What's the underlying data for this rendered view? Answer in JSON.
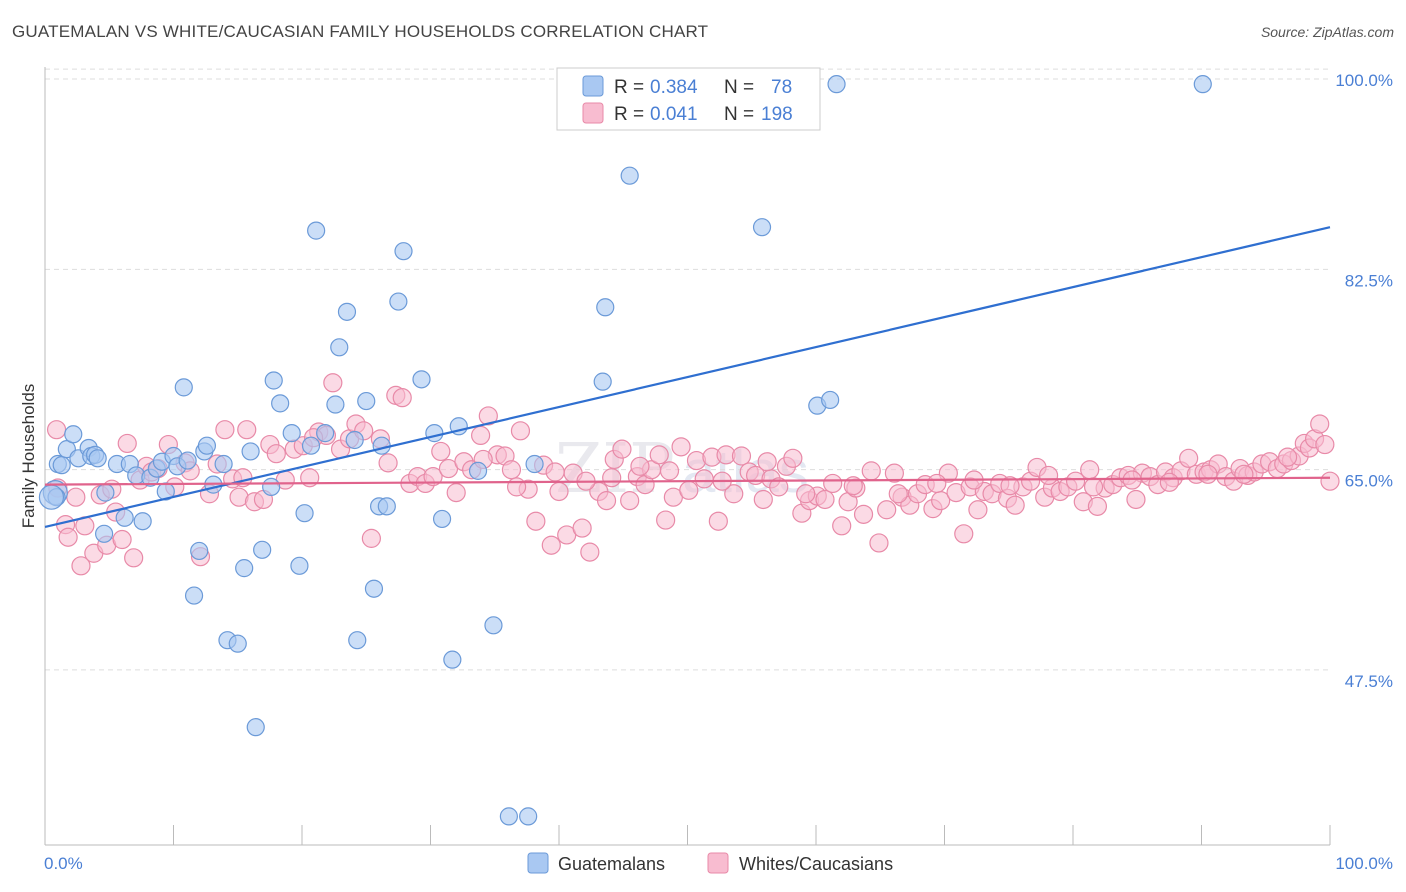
{
  "header": {
    "title": "GUATEMALAN VS WHITE/CAUCASIAN FAMILY HOUSEHOLDS CORRELATION CHART",
    "source": "Source: ZipAtlas.com"
  },
  "watermark": {
    "zip": "ZIP",
    "atlas": "atlas"
  },
  "colors": {
    "blue_fill": "#a9c8f2",
    "blue_stroke": "#6b9ad8",
    "blue_line": "#2f6fd0",
    "pink_fill": "#f8bcd0",
    "pink_stroke": "#e88aa8",
    "pink_line": "#e0638c",
    "tick_text": "#4a7fd4",
    "grid": "#dddddd"
  },
  "legend": {
    "r_label": "R =",
    "n_label": "N =",
    "series": [
      {
        "r": "0.384",
        "n": "78"
      },
      {
        "r": "0.041",
        "n": "198"
      }
    ]
  },
  "chart_data": {
    "type": "scatter",
    "title": "GUATEMALAN VS WHITE/CAUCASIAN FAMILY HOUSEHOLDS CORRELATION CHART",
    "xlabel": "",
    "ylabel": "Family Households",
    "xlim": [
      0,
      100
    ],
    "ylim": [
      33.5,
      101.5
    ],
    "x_tick_labels": [
      "0.0%",
      "100.0%"
    ],
    "y_ticks": [
      47.5,
      65.0,
      82.5,
      100.0
    ],
    "y_tick_labels": [
      "47.5%",
      "65.0%",
      "82.5%",
      "100.0%"
    ],
    "grid": true,
    "legend_position": "top-center",
    "series": [
      {
        "name": "Guatemalans",
        "color": "#a9c8f2",
        "trend": {
          "x": [
            0,
            100
          ],
          "y": [
            61.3,
            87.5
          ]
        },
        "points": [
          [
            0.8,
            64.3
          ],
          [
            0.9,
            63.9
          ],
          [
            1.0,
            66.8
          ],
          [
            1.3,
            66.7
          ],
          [
            1.7,
            68.1
          ],
          [
            2.2,
            69.4
          ],
          [
            2.6,
            67.3
          ],
          [
            3.4,
            68.2
          ],
          [
            3.6,
            67.5
          ],
          [
            3.9,
            67.6
          ],
          [
            4.1,
            67.3
          ],
          [
            4.6,
            60.7
          ],
          [
            4.7,
            64.3
          ],
          [
            5.6,
            66.8
          ],
          [
            6.2,
            62.1
          ],
          [
            6.6,
            66.8
          ],
          [
            7.1,
            65.8
          ],
          [
            7.6,
            61.8
          ],
          [
            8.2,
            65.6
          ],
          [
            8.7,
            66.4
          ],
          [
            9.1,
            67.0
          ],
          [
            9.4,
            64.4
          ],
          [
            10.0,
            67.5
          ],
          [
            10.3,
            66.6
          ],
          [
            10.8,
            73.5
          ],
          [
            11.1,
            67.1
          ],
          [
            11.6,
            55.3
          ],
          [
            12.0,
            59.2
          ],
          [
            12.4,
            67.9
          ],
          [
            12.6,
            68.4
          ],
          [
            13.1,
            65.0
          ],
          [
            13.9,
            66.8
          ],
          [
            14.2,
            51.4
          ],
          [
            15.0,
            51.1
          ],
          [
            15.5,
            57.7
          ],
          [
            16.0,
            67.9
          ],
          [
            16.4,
            43.8
          ],
          [
            16.9,
            59.3
          ],
          [
            17.6,
            64.8
          ],
          [
            17.8,
            74.1
          ],
          [
            18.3,
            72.1
          ],
          [
            19.2,
            69.5
          ],
          [
            19.8,
            57.9
          ],
          [
            20.2,
            62.5
          ],
          [
            20.7,
            68.4
          ],
          [
            21.1,
            87.2
          ],
          [
            21.8,
            69.5
          ],
          [
            22.6,
            72.0
          ],
          [
            22.9,
            77.0
          ],
          [
            23.5,
            80.1
          ],
          [
            24.1,
            68.9
          ],
          [
            24.3,
            51.4
          ],
          [
            25.0,
            72.3
          ],
          [
            25.6,
            55.9
          ],
          [
            26.0,
            63.1
          ],
          [
            26.2,
            68.4
          ],
          [
            26.6,
            63.1
          ],
          [
            27.5,
            81.0
          ],
          [
            27.9,
            85.4
          ],
          [
            29.3,
            74.2
          ],
          [
            30.3,
            69.5
          ],
          [
            30.9,
            62.0
          ],
          [
            31.7,
            49.7
          ],
          [
            32.2,
            70.1
          ],
          [
            33.7,
            66.2
          ],
          [
            34.9,
            52.7
          ],
          [
            36.1,
            36.0
          ],
          [
            37.6,
            36.0
          ],
          [
            38.1,
            66.8
          ],
          [
            43.4,
            74.0
          ],
          [
            43.6,
            80.5
          ],
          [
            45.5,
            92.0
          ],
          [
            55.8,
            87.5
          ],
          [
            60.1,
            71.9
          ],
          [
            61.1,
            72.4
          ],
          [
            61.6,
            100.0
          ],
          [
            90.1,
            100.0
          ],
          [
            0.5,
            63.9
          ]
        ]
      },
      {
        "name": "Whites/Caucasians",
        "color": "#f8bcd0",
        "trend": {
          "x": [
            0,
            100
          ],
          "y": [
            65.0,
            65.6
          ]
        },
        "points": [
          [
            0.9,
            69.8
          ],
          [
            1.0,
            64.7
          ],
          [
            1.6,
            61.5
          ],
          [
            1.8,
            60.4
          ],
          [
            2.4,
            63.9
          ],
          [
            2.8,
            57.9
          ],
          [
            3.1,
            61.4
          ],
          [
            3.8,
            59.0
          ],
          [
            4.3,
            64.1
          ],
          [
            4.8,
            59.7
          ],
          [
            5.2,
            64.6
          ],
          [
            5.5,
            62.6
          ],
          [
            6.0,
            60.2
          ],
          [
            6.4,
            68.6
          ],
          [
            6.9,
            58.6
          ],
          [
            7.4,
            65.4
          ],
          [
            7.9,
            66.6
          ],
          [
            8.3,
            66.1
          ],
          [
            8.8,
            66.4
          ],
          [
            9.6,
            68.5
          ],
          [
            10.1,
            64.8
          ],
          [
            10.9,
            66.9
          ],
          [
            11.3,
            66.2
          ],
          [
            12.1,
            58.7
          ],
          [
            12.8,
            64.2
          ],
          [
            13.4,
            66.8
          ],
          [
            14.0,
            69.8
          ],
          [
            14.6,
            65.5
          ],
          [
            15.1,
            63.9
          ],
          [
            15.7,
            69.8
          ],
          [
            16.3,
            63.5
          ],
          [
            17.0,
            63.7
          ],
          [
            17.5,
            68.5
          ],
          [
            18.0,
            67.7
          ],
          [
            18.7,
            65.4
          ],
          [
            19.4,
            68.1
          ],
          [
            20.1,
            68.4
          ],
          [
            20.6,
            65.6
          ],
          [
            21.3,
            69.6
          ],
          [
            21.9,
            69.3
          ],
          [
            22.4,
            73.9
          ],
          [
            23.0,
            68.1
          ],
          [
            23.7,
            69.0
          ],
          [
            24.2,
            70.3
          ],
          [
            24.8,
            69.7
          ],
          [
            25.4,
            60.3
          ],
          [
            26.1,
            69.0
          ],
          [
            26.7,
            66.9
          ],
          [
            27.3,
            72.8
          ],
          [
            27.8,
            72.6
          ],
          [
            28.4,
            65.1
          ],
          [
            29.0,
            65.7
          ],
          [
            29.6,
            65.1
          ],
          [
            30.2,
            65.7
          ],
          [
            30.8,
            67.9
          ],
          [
            31.4,
            66.4
          ],
          [
            32.0,
            64.3
          ],
          [
            32.6,
            67.0
          ],
          [
            33.2,
            66.3
          ],
          [
            33.9,
            69.3
          ],
          [
            34.5,
            71.0
          ],
          [
            35.2,
            67.6
          ],
          [
            35.8,
            67.5
          ],
          [
            36.3,
            66.3
          ],
          [
            37.0,
            69.7
          ],
          [
            37.6,
            64.6
          ],
          [
            38.2,
            61.8
          ],
          [
            38.8,
            66.7
          ],
          [
            39.4,
            59.7
          ],
          [
            40.0,
            64.4
          ],
          [
            40.6,
            60.6
          ],
          [
            41.1,
            66.0
          ],
          [
            41.8,
            61.2
          ],
          [
            42.4,
            59.1
          ],
          [
            43.1,
            64.4
          ],
          [
            43.7,
            63.6
          ],
          [
            44.3,
            67.2
          ],
          [
            44.9,
            68.1
          ],
          [
            45.5,
            63.6
          ],
          [
            46.1,
            65.7
          ],
          [
            46.7,
            65.0
          ],
          [
            47.2,
            66.3
          ],
          [
            47.8,
            67.6
          ],
          [
            48.3,
            61.9
          ],
          [
            48.9,
            63.9
          ],
          [
            49.5,
            68.3
          ],
          [
            50.1,
            64.5
          ],
          [
            50.7,
            67.1
          ],
          [
            51.3,
            65.5
          ],
          [
            51.9,
            67.4
          ],
          [
            52.4,
            61.8
          ],
          [
            53.0,
            67.6
          ],
          [
            53.6,
            64.2
          ],
          [
            54.2,
            67.5
          ],
          [
            54.8,
            66.1
          ],
          [
            55.3,
            65.8
          ],
          [
            55.9,
            63.7
          ],
          [
            56.5,
            65.5
          ],
          [
            57.1,
            64.8
          ],
          [
            57.7,
            66.6
          ],
          [
            58.2,
            67.3
          ],
          [
            58.9,
            62.5
          ],
          [
            59.5,
            63.6
          ],
          [
            60.1,
            64.0
          ],
          [
            60.7,
            63.7
          ],
          [
            61.3,
            65.1
          ],
          [
            62.0,
            61.4
          ],
          [
            62.5,
            63.5
          ],
          [
            63.1,
            64.7
          ],
          [
            63.7,
            62.4
          ],
          [
            64.3,
            66.2
          ],
          [
            64.9,
            59.9
          ],
          [
            65.5,
            62.8
          ],
          [
            66.1,
            66.0
          ],
          [
            66.7,
            63.9
          ],
          [
            67.3,
            63.2
          ],
          [
            67.9,
            64.2
          ],
          [
            68.5,
            65.0
          ],
          [
            69.1,
            62.9
          ],
          [
            69.7,
            63.6
          ],
          [
            70.3,
            66.0
          ],
          [
            70.9,
            64.3
          ],
          [
            71.5,
            60.7
          ],
          [
            72.0,
            64.8
          ],
          [
            72.6,
            62.8
          ],
          [
            73.1,
            64.4
          ],
          [
            73.7,
            64.2
          ],
          [
            74.3,
            65.1
          ],
          [
            74.9,
            63.8
          ],
          [
            75.5,
            63.2
          ],
          [
            76.1,
            64.8
          ],
          [
            76.7,
            65.3
          ],
          [
            77.2,
            66.5
          ],
          [
            77.8,
            63.9
          ],
          [
            78.4,
            64.7
          ],
          [
            79.0,
            64.4
          ],
          [
            79.6,
            64.8
          ],
          [
            80.2,
            65.3
          ],
          [
            80.8,
            63.5
          ],
          [
            81.3,
            66.3
          ],
          [
            81.9,
            63.1
          ],
          [
            82.5,
            64.7
          ],
          [
            83.1,
            65.0
          ],
          [
            83.7,
            65.6
          ],
          [
            84.3,
            65.8
          ],
          [
            84.9,
            63.7
          ],
          [
            85.4,
            66.0
          ],
          [
            86.0,
            65.7
          ],
          [
            86.6,
            65.0
          ],
          [
            87.2,
            66.1
          ],
          [
            87.8,
            65.6
          ],
          [
            88.4,
            66.2
          ],
          [
            89.0,
            67.3
          ],
          [
            89.6,
            65.9
          ],
          [
            90.2,
            66.1
          ],
          [
            90.7,
            66.3
          ],
          [
            91.3,
            66.8
          ],
          [
            91.9,
            65.7
          ],
          [
            92.5,
            65.3
          ],
          [
            93.0,
            66.4
          ],
          [
            93.6,
            65.8
          ],
          [
            94.1,
            66.1
          ],
          [
            94.7,
            66.8
          ],
          [
            95.3,
            67.0
          ],
          [
            95.9,
            66.4
          ],
          [
            96.4,
            66.8
          ],
          [
            97.0,
            67.1
          ],
          [
            97.6,
            67.5
          ],
          [
            98.0,
            68.6
          ],
          [
            98.4,
            68.2
          ],
          [
            98.8,
            69.0
          ],
          [
            99.2,
            70.3
          ],
          [
            100.0,
            65.3
          ],
          [
            34.1,
            67.2
          ],
          [
            36.7,
            64.8
          ],
          [
            39.7,
            66.1
          ],
          [
            42.1,
            65.3
          ],
          [
            44.1,
            65.6
          ],
          [
            46.3,
            66.6
          ],
          [
            48.6,
            66.2
          ],
          [
            52.7,
            65.3
          ],
          [
            56.2,
            67.0
          ],
          [
            59.2,
            64.2
          ],
          [
            62.9,
            64.9
          ],
          [
            66.4,
            64.2
          ],
          [
            69.4,
            65.1
          ],
          [
            72.3,
            65.4
          ],
          [
            75.1,
            64.9
          ],
          [
            78.1,
            65.8
          ],
          [
            81.6,
            64.8
          ],
          [
            84.6,
            65.4
          ],
          [
            87.5,
            65.2
          ],
          [
            90.5,
            65.9
          ],
          [
            93.3,
            65.9
          ],
          [
            96.7,
            67.4
          ],
          [
            99.6,
            68.5
          ],
          [
            15.4,
            65.6
          ],
          [
            20.9,
            69.1
          ]
        ]
      }
    ]
  }
}
